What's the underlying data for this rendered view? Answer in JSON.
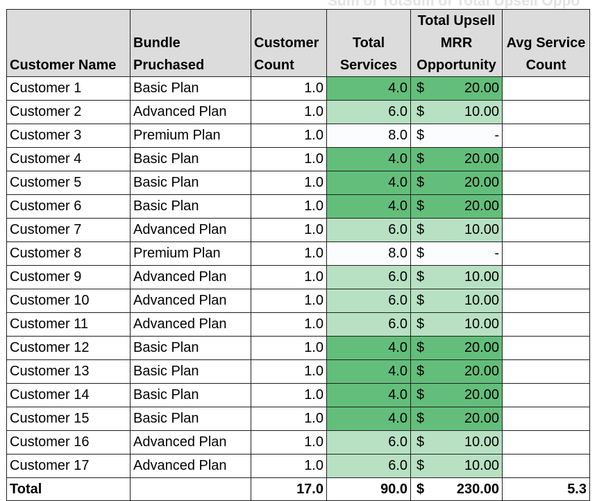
{
  "ghost_text": "Sum of TotSum of Total Upsell Oppo",
  "headers": {
    "customer_name": [
      "Customer Name"
    ],
    "bundle": [
      "Bundle",
      "Pruchased"
    ],
    "customer_count": [
      "Customer",
      "Count"
    ],
    "total_services": [
      "Total",
      "Services"
    ],
    "upsell": [
      "Total Upsell",
      "MRR",
      "Opportunity"
    ],
    "avg_service": [
      "Avg Service",
      "Count"
    ]
  },
  "currency_symbol": "$",
  "rows": [
    {
      "name": "Customer 1",
      "bundle": "Basic Plan",
      "count": "1.0",
      "services": "4.0",
      "upsell": "20.00",
      "avg": "",
      "shade": "dark"
    },
    {
      "name": "Customer 2",
      "bundle": "Advanced Plan",
      "count": "1.0",
      "services": "6.0",
      "upsell": "10.00",
      "avg": "",
      "shade": "light"
    },
    {
      "name": "Customer 3",
      "bundle": "Premium Plan",
      "count": "1.0",
      "services": "8.0",
      "upsell": "-",
      "avg": "",
      "shade": "pale"
    },
    {
      "name": "Customer 4",
      "bundle": "Basic Plan",
      "count": "1.0",
      "services": "4.0",
      "upsell": "20.00",
      "avg": "",
      "shade": "dark"
    },
    {
      "name": "Customer 5",
      "bundle": "Basic Plan",
      "count": "1.0",
      "services": "4.0",
      "upsell": "20.00",
      "avg": "",
      "shade": "dark"
    },
    {
      "name": "Customer 6",
      "bundle": "Basic Plan",
      "count": "1.0",
      "services": "4.0",
      "upsell": "20.00",
      "avg": "",
      "shade": "dark"
    },
    {
      "name": "Customer 7",
      "bundle": "Advanced Plan",
      "count": "1.0",
      "services": "6.0",
      "upsell": "10.00",
      "avg": "",
      "shade": "light"
    },
    {
      "name": "Customer 8",
      "bundle": "Premium Plan",
      "count": "1.0",
      "services": "8.0",
      "upsell": "-",
      "avg": "",
      "shade": "pale"
    },
    {
      "name": "Customer 9",
      "bundle": "Advanced Plan",
      "count": "1.0",
      "services": "6.0",
      "upsell": "10.00",
      "avg": "",
      "shade": "light"
    },
    {
      "name": "Customer 10",
      "bundle": "Advanced Plan",
      "count": "1.0",
      "services": "6.0",
      "upsell": "10.00",
      "avg": "",
      "shade": "light"
    },
    {
      "name": "Customer 11",
      "bundle": "Advanced Plan",
      "count": "1.0",
      "services": "6.0",
      "upsell": "10.00",
      "avg": "",
      "shade": "light"
    },
    {
      "name": "Customer 12",
      "bundle": "Basic Plan",
      "count": "1.0",
      "services": "4.0",
      "upsell": "20.00",
      "avg": "",
      "shade": "dark"
    },
    {
      "name": "Customer 13",
      "bundle": "Basic Plan",
      "count": "1.0",
      "services": "4.0",
      "upsell": "20.00",
      "avg": "",
      "shade": "dark"
    },
    {
      "name": "Customer 14",
      "bundle": "Basic Plan",
      "count": "1.0",
      "services": "4.0",
      "upsell": "20.00",
      "avg": "",
      "shade": "dark"
    },
    {
      "name": "Customer 15",
      "bundle": "Basic Plan",
      "count": "1.0",
      "services": "4.0",
      "upsell": "20.00",
      "avg": "",
      "shade": "dark"
    },
    {
      "name": "Customer 16",
      "bundle": "Advanced Plan",
      "count": "1.0",
      "services": "6.0",
      "upsell": "10.00",
      "avg": "",
      "shade": "light"
    },
    {
      "name": "Customer 17",
      "bundle": "Advanced Plan",
      "count": "1.0",
      "services": "6.0",
      "upsell": "10.00",
      "avg": "",
      "shade": "light"
    }
  ],
  "total": {
    "label": "Total",
    "bundle": "",
    "count": "17.0",
    "services": "90.0",
    "upsell": "230.00",
    "avg": "5.3"
  },
  "colors": {
    "dark": "#63be7b",
    "light": "#b7e1c2",
    "pale": "#fbfcfd",
    "header_bg": "#dcdcdc"
  }
}
